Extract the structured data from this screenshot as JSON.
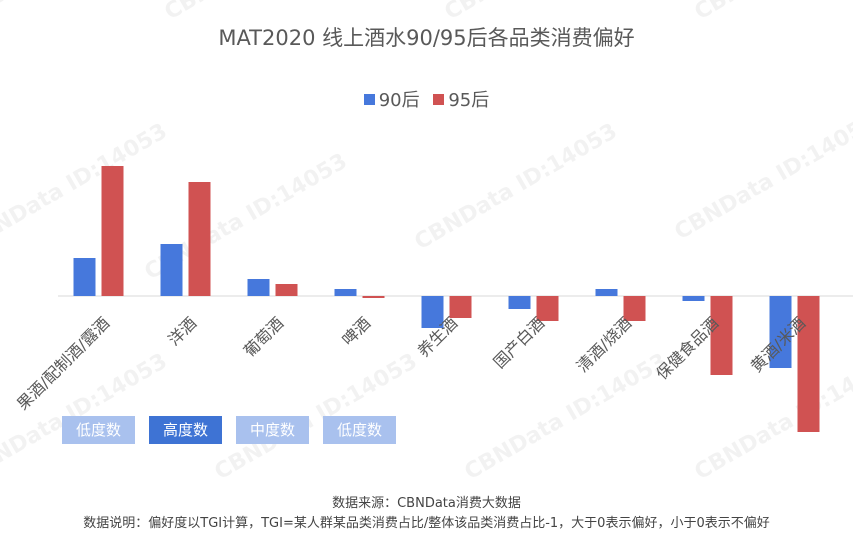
{
  "chart_data": {
    "type": "bar",
    "title": "MAT2020 线上酒水90/95后各品类消费偏好",
    "categories": [
      "果酒/配制酒/露酒",
      "洋酒",
      "葡萄酒",
      "啤酒",
      "养生酒",
      "国产白酒",
      "清酒/烧酒",
      "保健食品酒",
      "黄酒/米酒"
    ],
    "series": [
      {
        "name": "90后",
        "color": "#4678dc",
        "values": [
          0.38,
          0.52,
          0.17,
          0.07,
          -0.32,
          -0.13,
          0.07,
          -0.05,
          -0.72
        ]
      },
      {
        "name": "95后",
        "color": "#d05252",
        "values": [
          1.3,
          1.14,
          0.12,
          -0.02,
          -0.22,
          -0.25,
          -0.25,
          -0.79,
          -1.36
        ]
      }
    ],
    "xlabel": "",
    "ylabel": "",
    "ylim": [
      -1.4,
      1.4
    ],
    "grid": false,
    "legend": "top-center"
  },
  "filters": [
    {
      "label": "低度数",
      "state": "inactive"
    },
    {
      "label": "高度数",
      "state": "active"
    },
    {
      "label": "中度数",
      "state": "inactive"
    },
    {
      "label": "低度数",
      "state": "inactive"
    }
  ],
  "footer": {
    "source": "数据来源：CBNData消费大数据",
    "note": "数据说明：偏好度以TGI计算，TGI=某人群某品类消费占比/整体该品类消费占比-1，大于0表示偏好，小于0表示不偏好"
  },
  "watermark": "CBNData ID:14053"
}
